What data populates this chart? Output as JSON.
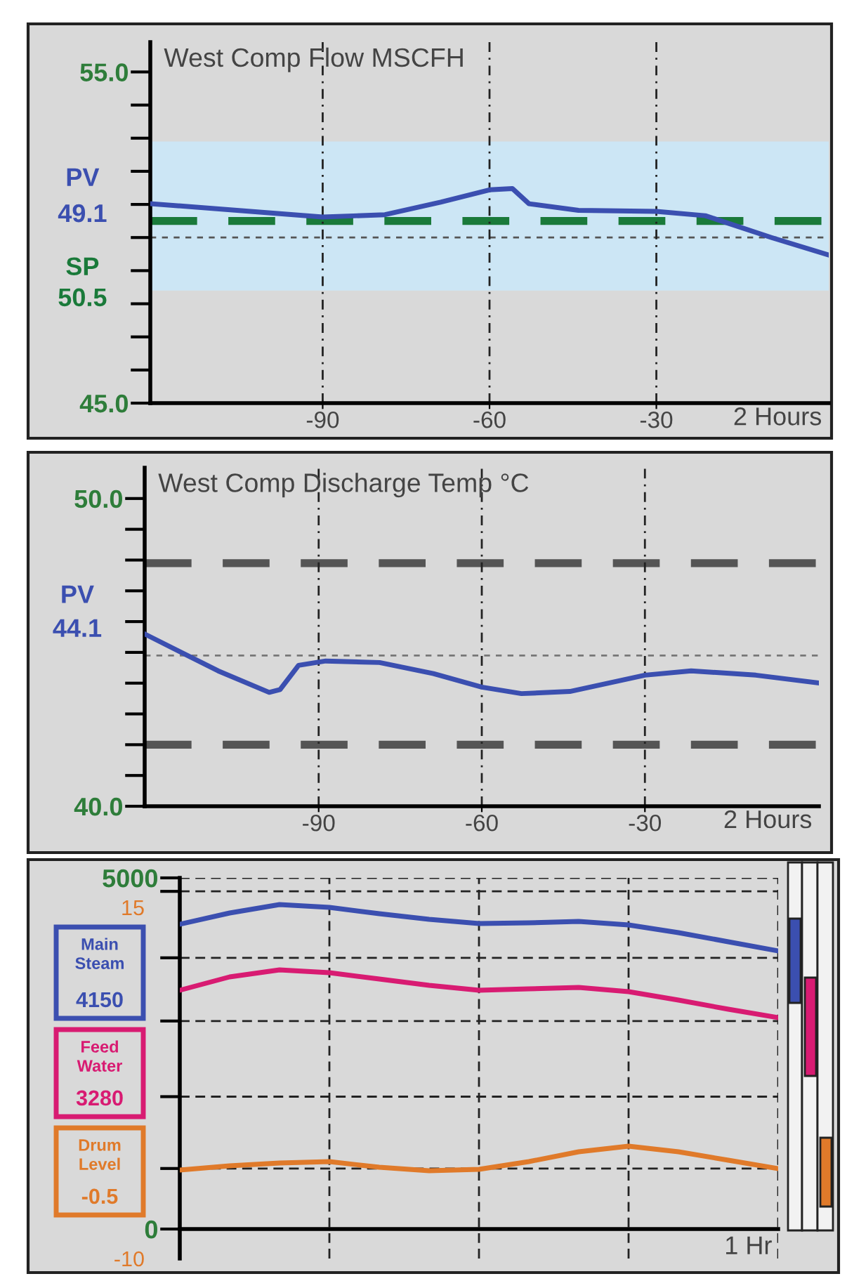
{
  "chart_data": [
    {
      "type": "line",
      "title": "West Comp Flow MSCFH",
      "xlabel": "2 Hours",
      "x": [
        -120.7,
        -90,
        -78.8,
        -68.8,
        -60,
        -55.9,
        -52.9,
        -44,
        -30,
        -21.2,
        -9.3,
        0.8
      ],
      "series": [
        {
          "name": "PV",
          "color": "#3b4fb0",
          "values": [
            51.02,
            50.62,
            50.69,
            51.07,
            51.44,
            51.48,
            51.02,
            50.82,
            50.79,
            50.66,
            50.0,
            49.48
          ]
        }
      ],
      "annotations": [
        "49.1"
      ],
      "xlim": [
        -121,
        1
      ],
      "xticks": [
        -90,
        -60,
        -30
      ],
      "ylim": [
        45,
        55.9
      ],
      "yticks": [
        {
          "value": 45,
          "label": "45.0"
        },
        {
          "value": 46,
          "label": null
        },
        {
          "value": 47,
          "label": null
        },
        {
          "value": 48,
          "label": null
        },
        {
          "value": 49,
          "label": null
        },
        {
          "value": 50,
          "label": null
        },
        {
          "value": 51,
          "label": null
        },
        {
          "value": 52,
          "label": null
        },
        {
          "value": 53,
          "label": null
        },
        {
          "value": 54,
          "label": null
        },
        {
          "value": 55,
          "label": "55.0"
        }
      ],
      "ref_lines": [
        {
          "axis": "y",
          "value": 50.5,
          "label": "SP\n50.5",
          "color": "#1a7a3a",
          "line_style": "dashed"
        },
        {
          "axis": "y",
          "value": 50.0,
          "color": "#555555",
          "line_style": "dotted"
        }
      ],
      "bands": [
        {
          "axis": "y",
          "from": 48.4,
          "to": 52.9,
          "color": "#cce6f5"
        }
      ],
      "grid": "x"
    },
    {
      "type": "line",
      "title": "West Comp Discharge Temp °C",
      "xlabel": "2 Hours",
      "x": [
        -121.8,
        -108.5,
        -99.1,
        -97.1,
        -93.7,
        -88.7,
        -78.8,
        -68.9,
        -60,
        -52.7,
        -43.8,
        -30,
        -21.5,
        -9.6,
        1.7
      ],
      "series": [
        {
          "name": "PV",
          "color": "#3b4fb0",
          "values": [
            45.58,
            44.4,
            43.7,
            43.79,
            44.58,
            44.72,
            44.67,
            44.31,
            43.87,
            43.66,
            43.73,
            44.26,
            44.4,
            44.26,
            44.01
          ]
        }
      ],
      "annotations": [
        "44.1"
      ],
      "xlim": [
        -122,
        2
      ],
      "xticks": [
        -90,
        -60,
        -30
      ],
      "ylim": [
        40,
        51
      ],
      "yticks": [
        {
          "value": 40,
          "label": "40.0"
        },
        {
          "value": 41,
          "label": null
        },
        {
          "value": 42,
          "label": null
        },
        {
          "value": 43,
          "label": null
        },
        {
          "value": 44,
          "label": null
        },
        {
          "value": 45,
          "label": null
        },
        {
          "value": 46,
          "label": null
        },
        {
          "value": 47,
          "label": null
        },
        {
          "value": 48,
          "label": null
        },
        {
          "value": 49,
          "label": null
        },
        {
          "value": 50,
          "label": "50.0"
        }
      ],
      "ref_lines": [
        {
          "axis": "y",
          "value": 47.9,
          "color": "#555555",
          "line_style": "dashed"
        },
        {
          "axis": "y",
          "value": 42.0,
          "color": "#555555",
          "line_style": "dashed"
        },
        {
          "axis": "y",
          "value": 44.9,
          "color": "#777777",
          "line_style": "dotted"
        }
      ],
      "grid": "x"
    },
    {
      "type": "line",
      "xlabel": "1 Hr",
      "categories": [
        null,
        null,
        null,
        null,
        null,
        null,
        null,
        null,
        null,
        null,
        null,
        null,
        null
      ],
      "series": [
        {
          "name": "Main Steam",
          "color": "#3b4fb0",
          "values": [
            4340,
            4500,
            4620,
            4580,
            4490,
            4410,
            4350,
            4360,
            4380,
            4330,
            4220,
            4090,
            3960
          ]
        },
        {
          "name": "Feed Water",
          "color": "#d81b72",
          "values": [
            3400,
            3590,
            3690,
            3650,
            3560,
            3470,
            3400,
            3420,
            3440,
            3380,
            3260,
            3130,
            3010
          ]
        },
        {
          "name": "Drum Level",
          "color": "#e07a2a",
          "axis": "y2",
          "values": [
            -3.7,
            -3.4,
            -3.2,
            -3.1,
            -3.5,
            -3.75,
            -3.65,
            -3.1,
            -2.4,
            -2.0,
            -2.4,
            -3.0,
            -3.6
          ]
        }
      ],
      "annotations": [
        "4150",
        "3280",
        "-0.5"
      ],
      "ylim": [
        -420,
        5000
      ],
      "yticks": [
        0,
        {
          "value": 862,
          "label": null
        },
        {
          "value": 1885,
          "label": null
        },
        {
          "value": 2962,
          "label": null
        },
        {
          "value": 3862,
          "label": null
        },
        {
          "value": 4808,
          "label": null
        },
        5000
      ],
      "y2lim": [
        -10,
        17.1
      ],
      "y2ticks": [
        -10,
        15
      ],
      "tick_labels": "y",
      "grid": true
    }
  ]
}
